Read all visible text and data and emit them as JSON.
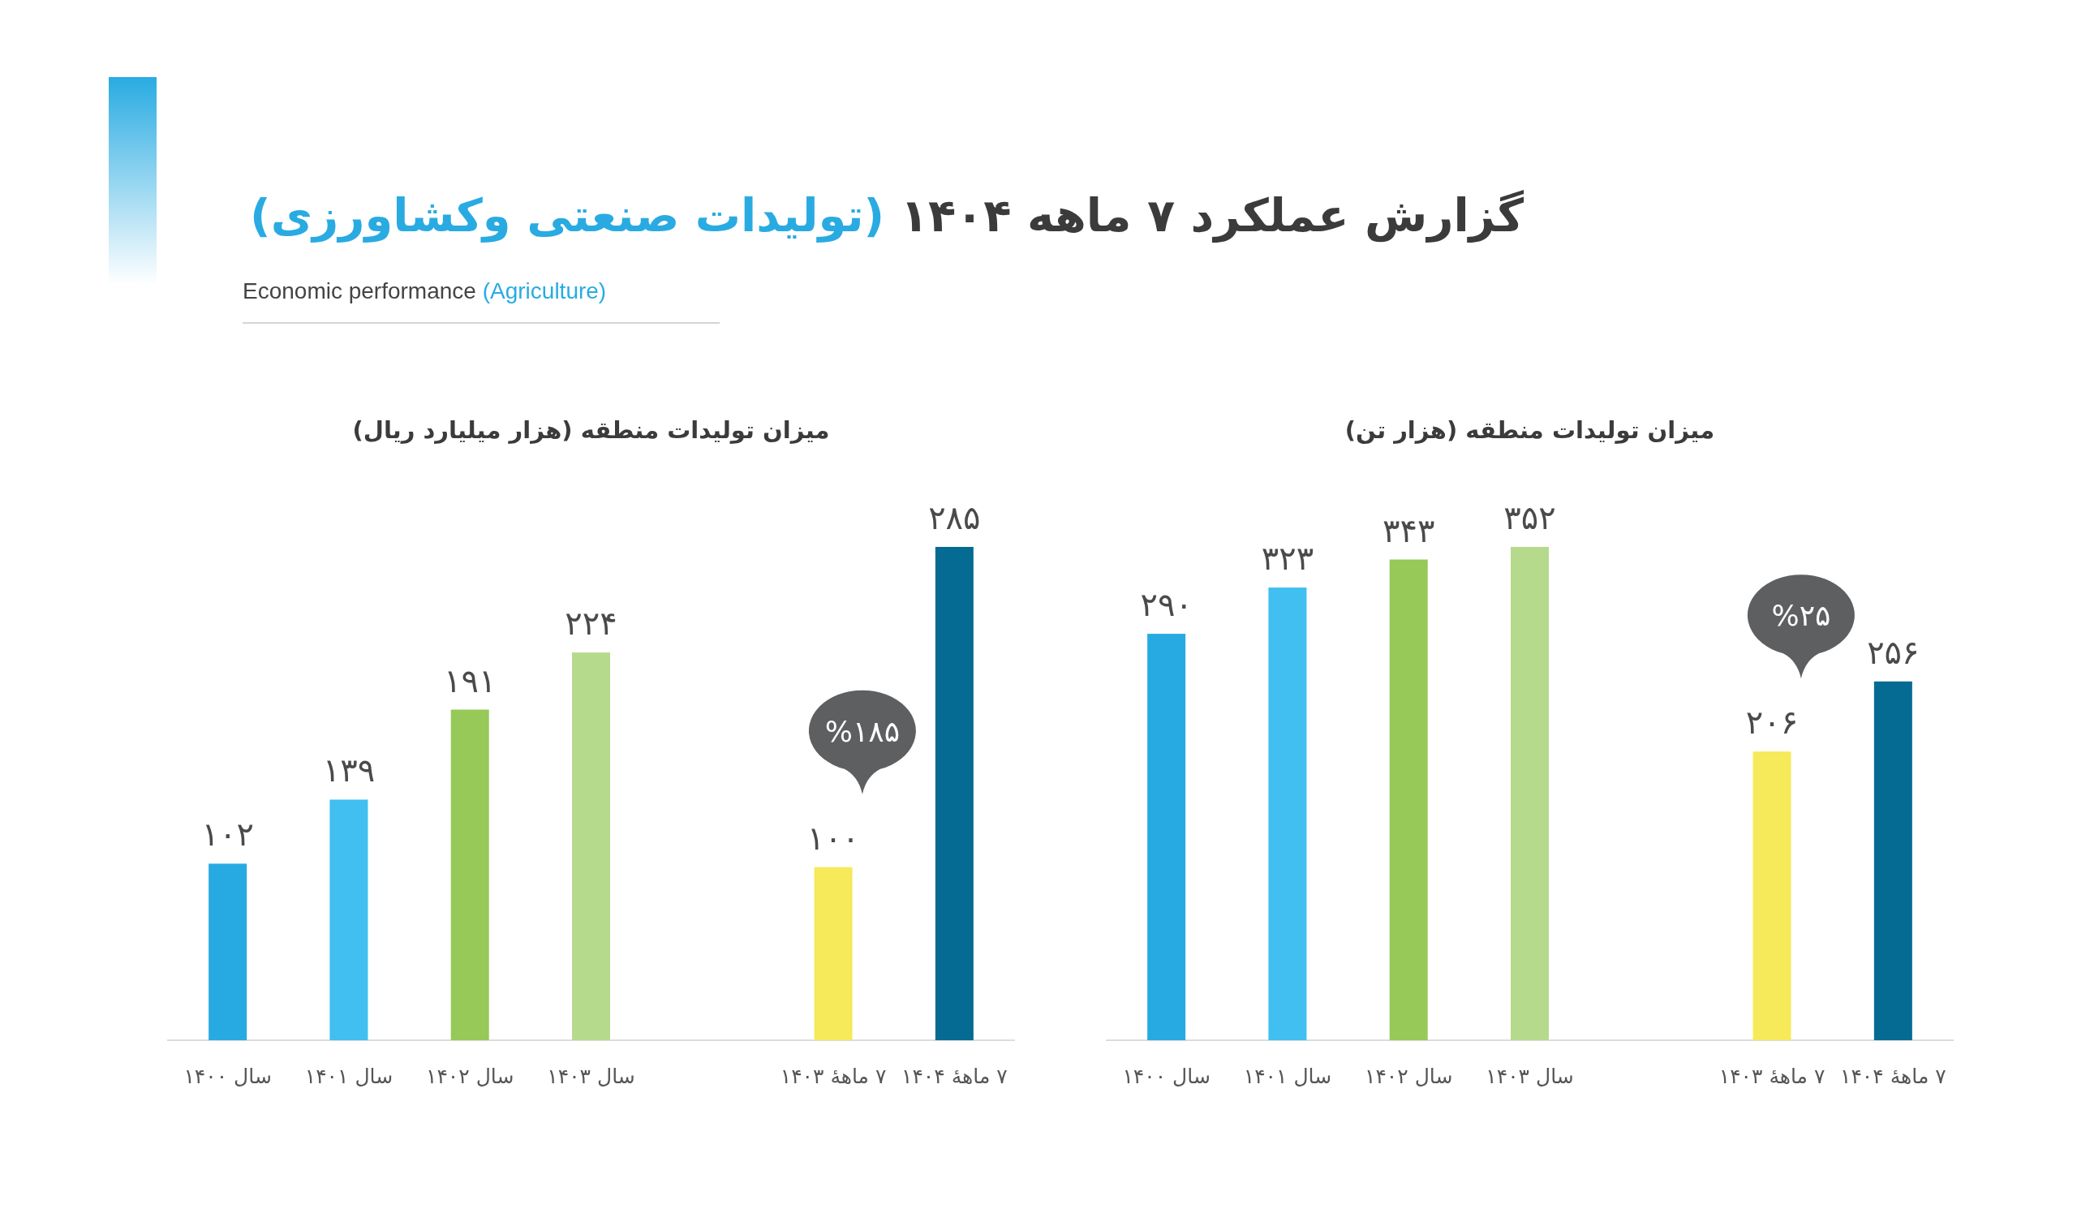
{
  "chart_data": [
    {
      "type": "other",
      "title": "گزارش عملکرد ۷ ماهه ۱۴۰۴ (تولیدات صنعتی وکشاورزی)",
      "subtitle": "Economic performance (Agriculture)"
    },
    {
      "type": "bar",
      "title": "میزان تولیدات منطقه (هزار میلیارد ریال)",
      "categories": [
        "سال ۱۴۰۰",
        "سال ۱۴۰۱",
        "سال ۱۴۰۲",
        "سال ۱۴۰۳",
        null,
        "۷ ماههٔ ۱۴۰۳",
        "۷ ماههٔ ۱۴۰۴"
      ],
      "values": [
        102,
        139,
        191,
        224,
        null,
        100,
        285
      ],
      "value_labels": [
        "۱۰۲",
        "۱۳۹",
        "۱۹۱",
        "۲۲۴",
        null,
        "۱۰۰",
        "۲۸۵"
      ],
      "colors": [
        "#27aae1",
        "#40bff0",
        "#96c957",
        "#b6da8c",
        null,
        "#f6e95a",
        "#066b92"
      ],
      "tick_labels": "x",
      "annotations": [
        "%۱۸۵"
      ]
    },
    {
      "type": "bar",
      "title": "میزان تولیدات منطقه (هزار تن)",
      "categories": [
        "سال ۱۴۰۰",
        "سال ۱۴۰۱",
        "سال ۱۴۰۲",
        "سال ۱۴۰۳",
        null,
        "۷ ماههٔ ۱۴۰۳",
        "۷ ماههٔ ۱۴۰۴"
      ],
      "values": [
        290,
        323,
        343,
        352,
        null,
        206,
        256
      ],
      "value_labels": [
        "۲۹۰",
        "۳۲۳",
        "۳۴۳",
        "۳۵۲",
        null,
        "۲۰۶",
        "۲۵۶"
      ],
      "colors": [
        "#27aae1",
        "#40bff0",
        "#96c957",
        "#b6da8c",
        null,
        "#f6e95a",
        "#066b92"
      ],
      "tick_labels": "x",
      "annotations": [
        "%۲۵"
      ]
    }
  ]
}
